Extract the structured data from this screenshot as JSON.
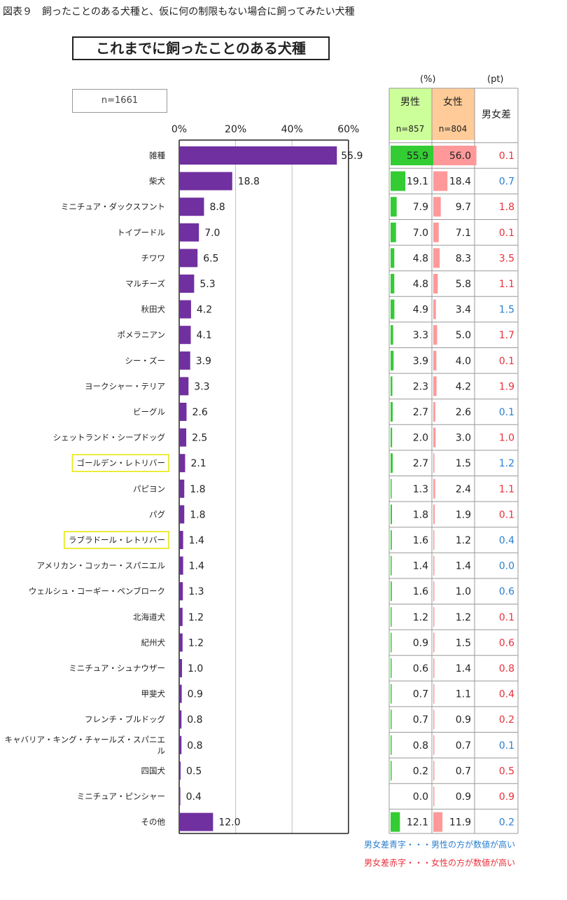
{
  "caption": "図表９　飼ったことのある犬種と、仮に何の制限もない場合に飼ってみたい犬種",
  "chart_title": "これまでに飼ったことのある犬種",
  "n_label": "n=1661",
  "units": {
    "percent": "(%)",
    "pt": "(pt)"
  },
  "table_headers": {
    "male": "男性",
    "male_n": "n=857",
    "female": "女性",
    "female_n": "n=804",
    "diff": "男女差"
  },
  "legend": {
    "blue": "男女差青字・・・男性の方が数値が高い",
    "red": "男女差赤字・・・女性の方が数値が高い"
  },
  "colors": {
    "bar": "#7030a0",
    "male_bar": "#33cc33",
    "female_bar": "#ff9999",
    "male_header": "#ccff99",
    "female_header": "#ffcc99",
    "diff_red": "#e8313b",
    "diff_blue": "#2a7fd0"
  },
  "chart_data": {
    "type": "bar",
    "orientation": "horizontal",
    "title": "これまでに飼ったことのある犬種",
    "xlim": [
      0,
      60
    ],
    "xticks": [
      "0%",
      "20%",
      "40%",
      "60%"
    ],
    "xtick_values": [
      0,
      20,
      40,
      60
    ],
    "categories": [
      "雑種",
      "柴犬",
      "ミニチュア・ダックスフント",
      "トイプードル",
      "チワワ",
      "マルチーズ",
      "秋田犬",
      "ポメラニアン",
      "シー・ズー",
      "ヨークシャー・テリア",
      "ビーグル",
      "シェットランド・シープドッグ",
      "ゴールデン・レトリバー",
      "パピヨン",
      "パグ",
      "ラブラドール・レトリバー",
      "アメリカン・コッカー・スパニエル",
      "ウェルシュ・コーギー・ペンブローク",
      "北海道犬",
      "紀州犬",
      "ミニチュア・シュナウザー",
      "甲斐犬",
      "フレンチ・ブルドッグ",
      "キャバリア・キング・チャールズ・スパニエル",
      "四国犬",
      "ミニチュア・ピンシャー",
      "その他"
    ],
    "highlighted": [
      "ゴールデン・レトリバー",
      "ラブラドール・レトリバー"
    ],
    "values": [
      55.9,
      18.8,
      8.8,
      7.0,
      6.5,
      5.3,
      4.2,
      4.1,
      3.9,
      3.3,
      2.6,
      2.5,
      2.1,
      1.8,
      1.8,
      1.4,
      1.4,
      1.3,
      1.2,
      1.2,
      1.0,
      0.9,
      0.8,
      0.8,
      0.5,
      0.4,
      12.0
    ],
    "value_labels": [
      "55.9",
      "18.8",
      "8.8",
      "7.0",
      "6.5",
      "5.3",
      "4.2",
      "4.1",
      "3.9",
      "3.3",
      "2.6",
      "2.5",
      "2.1",
      "1.8",
      "1.8",
      "1.4",
      "1.4",
      "1.3",
      "1.2",
      "1.2",
      "1.0",
      "0.9",
      "0.8",
      "0.8",
      "0.5",
      "0.4",
      "12.0"
    ],
    "table": {
      "male_labels": [
        "55.9",
        "19.1",
        "7.9",
        "7.0",
        "4.8",
        "4.8",
        "4.9",
        "3.3",
        "3.9",
        "2.3",
        "2.7",
        "2.0",
        "2.7",
        "1.3",
        "1.8",
        "1.6",
        "1.4",
        "1.6",
        "1.2",
        "0.9",
        "0.6",
        "0.7",
        "0.7",
        "0.8",
        "0.2",
        "0.0",
        "12.1"
      ],
      "female_labels": [
        "56.0",
        "18.4",
        "9.7",
        "7.1",
        "8.3",
        "5.8",
        "3.4",
        "5.0",
        "4.0",
        "4.2",
        "2.6",
        "3.0",
        "1.5",
        "2.4",
        "1.9",
        "1.2",
        "1.4",
        "1.0",
        "1.2",
        "1.5",
        "1.4",
        "1.1",
        "0.9",
        "0.7",
        "0.7",
        "0.9",
        "11.9"
      ],
      "diff_labels": [
        "0.1",
        "0.7",
        "1.8",
        "0.1",
        "3.5",
        "1.1",
        "1.5",
        "1.7",
        "0.1",
        "1.9",
        "0.1",
        "1.0",
        "1.2",
        "1.1",
        "0.1",
        "0.4",
        "0.0",
        "0.6",
        "0.1",
        "0.6",
        "0.8",
        "0.4",
        "0.2",
        "0.1",
        "0.5",
        "0.9",
        "0.2"
      ],
      "diff_color": [
        "red",
        "blue",
        "red",
        "red",
        "red",
        "red",
        "blue",
        "red",
        "red",
        "red",
        "blue",
        "red",
        "blue",
        "red",
        "red",
        "blue",
        "blue",
        "blue",
        "red",
        "red",
        "red",
        "red",
        "red",
        "blue",
        "red",
        "red",
        "blue"
      ]
    }
  }
}
